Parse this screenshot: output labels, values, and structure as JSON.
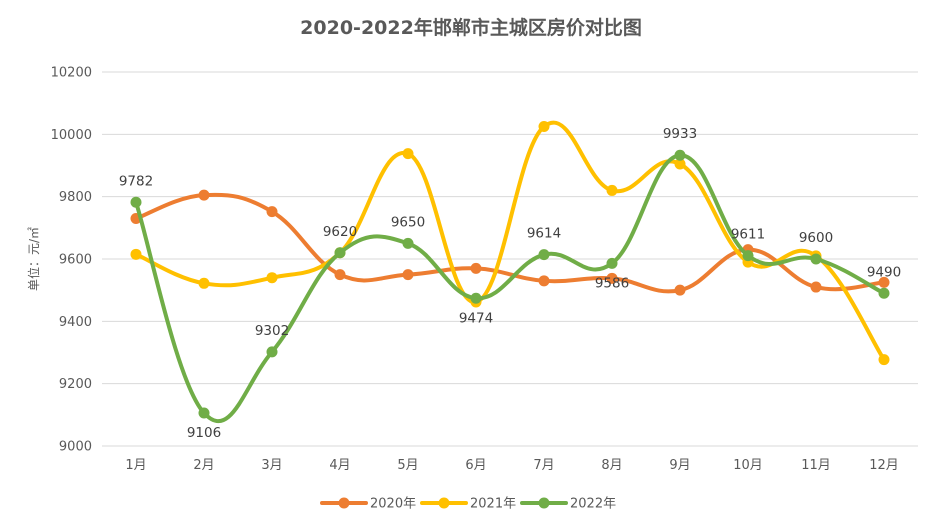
{
  "chart_data": {
    "type": "line",
    "title": "2020-2022年邯郸市主城区房价对比图",
    "ylabel": "单位：元/㎡",
    "xlabel": "",
    "categories": [
      "1月",
      "2月",
      "3月",
      "4月",
      "5月",
      "6月",
      "7月",
      "8月",
      "9月",
      "10月",
      "11月",
      "12月"
    ],
    "ylim": [
      9000,
      10200
    ],
    "yticks": [
      9000,
      9200,
      9400,
      9600,
      9800,
      10000,
      10200
    ],
    "grid": true,
    "smooth": true,
    "legend_position": "bottom",
    "series": [
      {
        "name": "2020年",
        "color": "#ED7D31",
        "values": [
          9730,
          9805,
          9752,
          9550,
          9550,
          9570,
          9530,
          9538,
          9500,
          9630,
          9510,
          9525
        ]
      },
      {
        "name": "2021年",
        "color": "#FFC000",
        "values": [
          9615,
          9522,
          9540,
          9620,
          9938,
          9462,
          10025,
          9820,
          9905,
          9590,
          9610,
          9277
        ]
      },
      {
        "name": "2022年",
        "color": "#70AD47",
        "values": [
          9782,
          9106,
          9302,
          9620,
          9650,
          9474,
          9614,
          9586,
          9933,
          9611,
          9600,
          9490
        ]
      }
    ],
    "data_labels": {
      "series": "2022年",
      "values": [
        "9782",
        "9106",
        "9302",
        "9620",
        "9650",
        "9474",
        "9614",
        "9586",
        "9933",
        "9611",
        "9600",
        "9490"
      ]
    }
  }
}
